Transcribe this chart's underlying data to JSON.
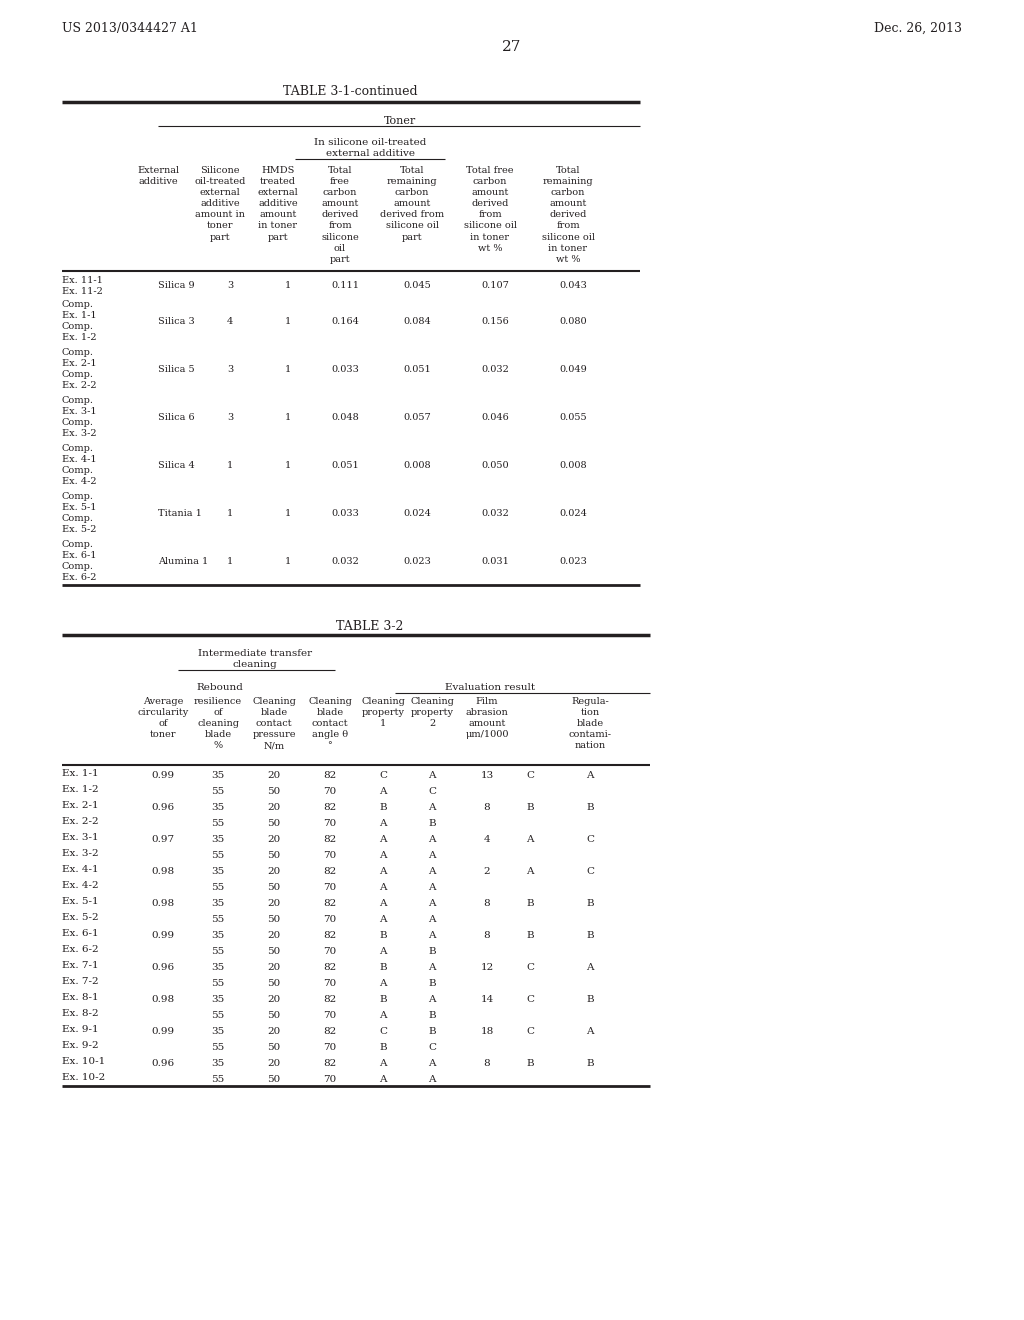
{
  "page_number": "27",
  "patent_left": "US 2013/0344427 A1",
  "patent_right": "Dec. 26, 2013",
  "table1_title": "TABLE 3-1-continued",
  "table1_rows": [
    {
      "label": "Ex. 11-1\nEx. 11-2",
      "ext": "Silica 9",
      "v1": "3",
      "v2": "1",
      "v3": "0.111",
      "v4": "0.045",
      "v5": "0.107",
      "v6": "0.043"
    },
    {
      "label": "Comp.\nEx. 1-1\nComp.\nEx. 1-2",
      "ext": "Silica 3",
      "v1": "4",
      "v2": "1",
      "v3": "0.164",
      "v4": "0.084",
      "v5": "0.156",
      "v6": "0.080"
    },
    {
      "label": "Comp.\nEx. 2-1\nComp.\nEx. 2-2",
      "ext": "Silica 5",
      "v1": "3",
      "v2": "1",
      "v3": "0.033",
      "v4": "0.051",
      "v5": "0.032",
      "v6": "0.049"
    },
    {
      "label": "Comp.\nEx. 3-1\nComp.\nEx. 3-2",
      "ext": "Silica 6",
      "v1": "3",
      "v2": "1",
      "v3": "0.048",
      "v4": "0.057",
      "v5": "0.046",
      "v6": "0.055"
    },
    {
      "label": "Comp.\nEx. 4-1\nComp.\nEx. 4-2",
      "ext": "Silica 4",
      "v1": "1",
      "v2": "1",
      "v3": "0.051",
      "v4": "0.008",
      "v5": "0.050",
      "v6": "0.008"
    },
    {
      "label": "Comp.\nEx. 5-1\nComp.\nEx. 5-2",
      "ext": "Titania 1",
      "v1": "1",
      "v2": "1",
      "v3": "0.033",
      "v4": "0.024",
      "v5": "0.032",
      "v6": "0.024"
    },
    {
      "label": "Comp.\nEx. 6-1\nComp.\nEx. 6-2",
      "ext": "Alumina 1",
      "v1": "1",
      "v2": "1",
      "v3": "0.032",
      "v4": "0.023",
      "v5": "0.031",
      "v6": "0.023"
    }
  ],
  "table2_title": "TABLE 3-2",
  "table2_rows": [
    {
      "label": "Ex. 1-1",
      "circ": "0.99",
      "res": "35",
      "cp": "20",
      "ca": "82",
      "c1": "C",
      "c2": "A",
      "film": "13",
      "filmg": "C",
      "reg": "A"
    },
    {
      "label": "Ex. 1-2",
      "circ": "",
      "res": "55",
      "cp": "50",
      "ca": "70",
      "c1": "A",
      "c2": "C",
      "film": "",
      "filmg": "",
      "reg": ""
    },
    {
      "label": "Ex. 2-1",
      "circ": "0.96",
      "res": "35",
      "cp": "20",
      "ca": "82",
      "c1": "B",
      "c2": "A",
      "film": "8",
      "filmg": "B",
      "reg": "B"
    },
    {
      "label": "Ex. 2-2",
      "circ": "",
      "res": "55",
      "cp": "50",
      "ca": "70",
      "c1": "A",
      "c2": "B",
      "film": "",
      "filmg": "",
      "reg": ""
    },
    {
      "label": "Ex. 3-1",
      "circ": "0.97",
      "res": "35",
      "cp": "20",
      "ca": "82",
      "c1": "A",
      "c2": "A",
      "film": "4",
      "filmg": "A",
      "reg": "C"
    },
    {
      "label": "Ex. 3-2",
      "circ": "",
      "res": "55",
      "cp": "50",
      "ca": "70",
      "c1": "A",
      "c2": "A",
      "film": "",
      "filmg": "",
      "reg": ""
    },
    {
      "label": "Ex. 4-1",
      "circ": "0.98",
      "res": "35",
      "cp": "20",
      "ca": "82",
      "c1": "A",
      "c2": "A",
      "film": "2",
      "filmg": "A",
      "reg": "C"
    },
    {
      "label": "Ex. 4-2",
      "circ": "",
      "res": "55",
      "cp": "50",
      "ca": "70",
      "c1": "A",
      "c2": "A",
      "film": "",
      "filmg": "",
      "reg": ""
    },
    {
      "label": "Ex. 5-1",
      "circ": "0.98",
      "res": "35",
      "cp": "20",
      "ca": "82",
      "c1": "A",
      "c2": "A",
      "film": "8",
      "filmg": "B",
      "reg": "B"
    },
    {
      "label": "Ex. 5-2",
      "circ": "",
      "res": "55",
      "cp": "50",
      "ca": "70",
      "c1": "A",
      "c2": "A",
      "film": "",
      "filmg": "",
      "reg": ""
    },
    {
      "label": "Ex. 6-1",
      "circ": "0.99",
      "res": "35",
      "cp": "20",
      "ca": "82",
      "c1": "B",
      "c2": "A",
      "film": "8",
      "filmg": "B",
      "reg": "B"
    },
    {
      "label": "Ex. 6-2",
      "circ": "",
      "res": "55",
      "cp": "50",
      "ca": "70",
      "c1": "A",
      "c2": "B",
      "film": "",
      "filmg": "",
      "reg": ""
    },
    {
      "label": "Ex. 7-1",
      "circ": "0.96",
      "res": "35",
      "cp": "20",
      "ca": "82",
      "c1": "B",
      "c2": "A",
      "film": "12",
      "filmg": "C",
      "reg": "A"
    },
    {
      "label": "Ex. 7-2",
      "circ": "",
      "res": "55",
      "cp": "50",
      "ca": "70",
      "c1": "A",
      "c2": "B",
      "film": "",
      "filmg": "",
      "reg": ""
    },
    {
      "label": "Ex. 8-1",
      "circ": "0.98",
      "res": "35",
      "cp": "20",
      "ca": "82",
      "c1": "B",
      "c2": "A",
      "film": "14",
      "filmg": "C",
      "reg": "B"
    },
    {
      "label": "Ex. 8-2",
      "circ": "",
      "res": "55",
      "cp": "50",
      "ca": "70",
      "c1": "A",
      "c2": "B",
      "film": "",
      "filmg": "",
      "reg": ""
    },
    {
      "label": "Ex. 9-1",
      "circ": "0.99",
      "res": "35",
      "cp": "20",
      "ca": "82",
      "c1": "C",
      "c2": "B",
      "film": "18",
      "filmg": "C",
      "reg": "A"
    },
    {
      "label": "Ex. 9-2",
      "circ": "",
      "res": "55",
      "cp": "50",
      "ca": "70",
      "c1": "B",
      "c2": "C",
      "film": "",
      "filmg": "",
      "reg": ""
    },
    {
      "label": "Ex. 10-1",
      "circ": "0.96",
      "res": "35",
      "cp": "20",
      "ca": "82",
      "c1": "A",
      "c2": "A",
      "film": "8",
      "filmg": "B",
      "reg": "B"
    },
    {
      "label": "Ex. 10-2",
      "circ": "",
      "res": "55",
      "cp": "50",
      "ca": "70",
      "c1": "A",
      "c2": "A",
      "film": "",
      "filmg": "",
      "reg": ""
    }
  ],
  "bg_color": "#ffffff",
  "text_color": "#231f20",
  "line_color": "#231f20"
}
